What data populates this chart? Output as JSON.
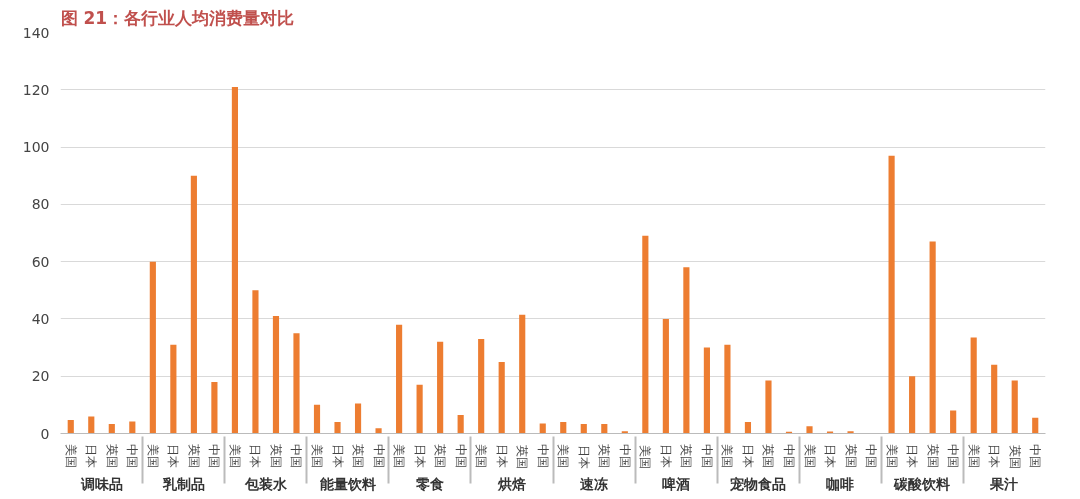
{
  "chart_data": {
    "type": "bar",
    "title": "图 21：各行业人均消费量对比",
    "categories": [
      [
        "调味品",
        "美国"
      ],
      [
        null,
        "日本"
      ],
      [
        null,
        "英国"
      ],
      [
        null,
        "中国"
      ],
      [
        "乳制品",
        "美国"
      ],
      [
        null,
        "日本"
      ],
      [
        null,
        "英国"
      ],
      [
        null,
        "中国"
      ],
      [
        "包装水",
        "美国"
      ],
      [
        null,
        "日本"
      ],
      [
        null,
        "英国"
      ],
      [
        null,
        "中国"
      ],
      [
        "能量饮料",
        "美国"
      ],
      [
        null,
        "日本"
      ],
      [
        null,
        "英国"
      ],
      [
        null,
        "中国"
      ],
      [
        "零食",
        "美国"
      ],
      [
        null,
        "日本"
      ],
      [
        null,
        "英国"
      ],
      [
        null,
        "中国"
      ],
      [
        "烘焙",
        "美国"
      ],
      [
        null,
        "日本"
      ],
      [
        null,
        "英国"
      ],
      [
        null,
        "中国"
      ],
      [
        "速冻",
        "美国"
      ],
      [
        null,
        "日本"
      ],
      [
        null,
        "英国"
      ],
      [
        null,
        "中国"
      ],
      [
        "啤酒",
        "美国"
      ],
      [
        null,
        "日本"
      ],
      [
        null,
        "英国"
      ],
      [
        null,
        "中国"
      ],
      [
        "宠物食品",
        "美国"
      ],
      [
        null,
        "日本"
      ],
      [
        null,
        "英国"
      ],
      [
        null,
        "中国"
      ],
      [
        "咖啡",
        "美国"
      ],
      [
        null,
        "日本"
      ],
      [
        null,
        "英国"
      ],
      [
        null,
        "中国"
      ],
      [
        "碳酸饮料",
        "美国"
      ],
      [
        null,
        "日本"
      ],
      [
        null,
        "英国"
      ],
      [
        null,
        "中国"
      ],
      [
        "果汁",
        "美国"
      ],
      [
        null,
        "日本"
      ],
      [
        null,
        "英国"
      ],
      [
        null,
        "中国"
      ]
    ],
    "values": [
      4.7,
      5.9,
      3.3,
      4.2,
      60,
      31,
      90,
      18,
      121,
      50,
      41,
      35,
      10,
      4,
      10.5,
      1.8,
      38,
      17,
      32,
      6.5,
      33,
      25,
      41.5,
      3.5,
      4,
      3.3,
      3.3,
      0.8,
      69,
      40,
      58,
      30,
      31,
      4,
      18.5,
      0.6,
      2.5,
      0.7,
      0.8,
      0,
      97,
      20,
      67,
      8,
      33.5,
      24,
      18.5,
      5.5
    ],
    "color": "#ed7d31",
    "ylim": [
      0,
      140
    ],
    "yticks": [
      0,
      20,
      40,
      60,
      80,
      100,
      120,
      140
    ],
    "grid": "y"
  }
}
